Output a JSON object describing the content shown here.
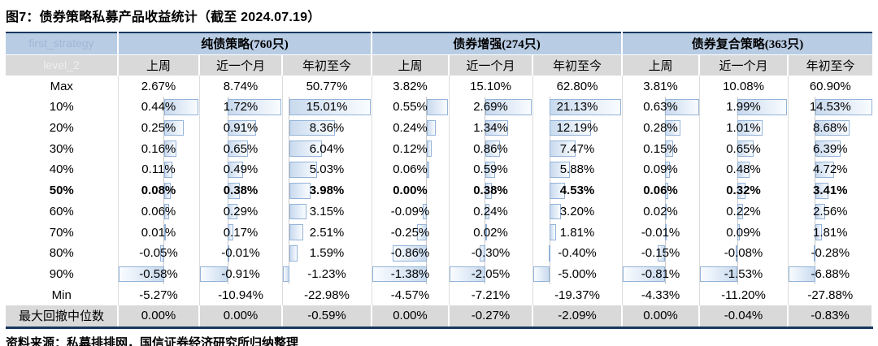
{
  "page": {
    "title": "图7：债券策略私募产品收益统计（截至 2024.07.19）",
    "source": "资料来源：私募排排网，国信证券经济研究所归纳整理"
  },
  "colors": {
    "header_blue": "#B8CCE4",
    "row_gray": "#D9D9D9",
    "bar_border": "#94B3D8",
    "bar_fill": "#C9DAEE",
    "table_border": "#17375E",
    "grid_line": "#DCDCDC",
    "axis_line": "#C8C8C8"
  },
  "table": {
    "ghost_header_text": "first_strategy",
    "ghost_subheader_text": "level_2",
    "groups": [
      {
        "label": "纯债策略(760只)",
        "columns": [
          "上周",
          "近一个月",
          "年初至今"
        ]
      },
      {
        "label": "债券增强(274只)",
        "columns": [
          "上周",
          "近一个月",
          "年初至今"
        ]
      },
      {
        "label": "债券复合策略(363只)",
        "columns": [
          "上周",
          "近一个月",
          "年初至今"
        ]
      }
    ],
    "value_suffix": "%",
    "rows": [
      {
        "label": "Max",
        "values": [
          2.67,
          8.74,
          50.77,
          3.82,
          15.1,
          62.8,
          3.81,
          10.08,
          60.9
        ]
      },
      {
        "label": "10%",
        "bars": true,
        "values": [
          0.44,
          1.72,
          15.01,
          0.55,
          2.69,
          21.13,
          0.63,
          1.99,
          14.53
        ]
      },
      {
        "label": "20%",
        "bars": true,
        "values": [
          0.25,
          0.91,
          8.36,
          0.24,
          1.34,
          12.19,
          0.28,
          1.01,
          8.68
        ]
      },
      {
        "label": "30%",
        "bars": true,
        "values": [
          0.16,
          0.65,
          6.04,
          0.12,
          0.86,
          7.47,
          0.15,
          0.65,
          6.39
        ]
      },
      {
        "label": "40%",
        "bars": true,
        "values": [
          0.11,
          0.49,
          5.03,
          0.06,
          0.59,
          5.88,
          0.09,
          0.48,
          4.72
        ]
      },
      {
        "label": "50%",
        "bold": true,
        "bars": true,
        "values": [
          0.08,
          0.38,
          3.98,
          0.0,
          0.38,
          4.53,
          0.06,
          0.32,
          3.41
        ]
      },
      {
        "label": "60%",
        "bars": true,
        "values": [
          0.06,
          0.29,
          3.15,
          -0.09,
          0.24,
          3.2,
          0.02,
          0.22,
          2.56
        ]
      },
      {
        "label": "70%",
        "bars": true,
        "values": [
          0.01,
          0.17,
          2.51,
          -0.25,
          0.02,
          1.81,
          -0.01,
          0.09,
          1.81
        ]
      },
      {
        "label": "80%",
        "bars": true,
        "values": [
          -0.05,
          -0.01,
          1.59,
          -0.86,
          -0.3,
          -0.4,
          -0.15,
          -0.08,
          -0.28
        ]
      },
      {
        "label": "90%",
        "bars": true,
        "values": [
          -0.58,
          -0.91,
          -1.23,
          -1.38,
          -2.05,
          -5.0,
          -0.81,
          -1.53,
          -6.88
        ]
      },
      {
        "label": "Min",
        "values": [
          -5.27,
          -10.94,
          -22.98,
          -4.57,
          -7.21,
          -19.37,
          -4.33,
          -11.2,
          -27.88
        ]
      },
      {
        "label": "最大回撤中位数",
        "footer": true,
        "values": [
          0.0,
          0.0,
          -0.59,
          0.0,
          -0.27,
          -2.09,
          0.0,
          -0.04,
          -0.83
        ]
      }
    ]
  }
}
